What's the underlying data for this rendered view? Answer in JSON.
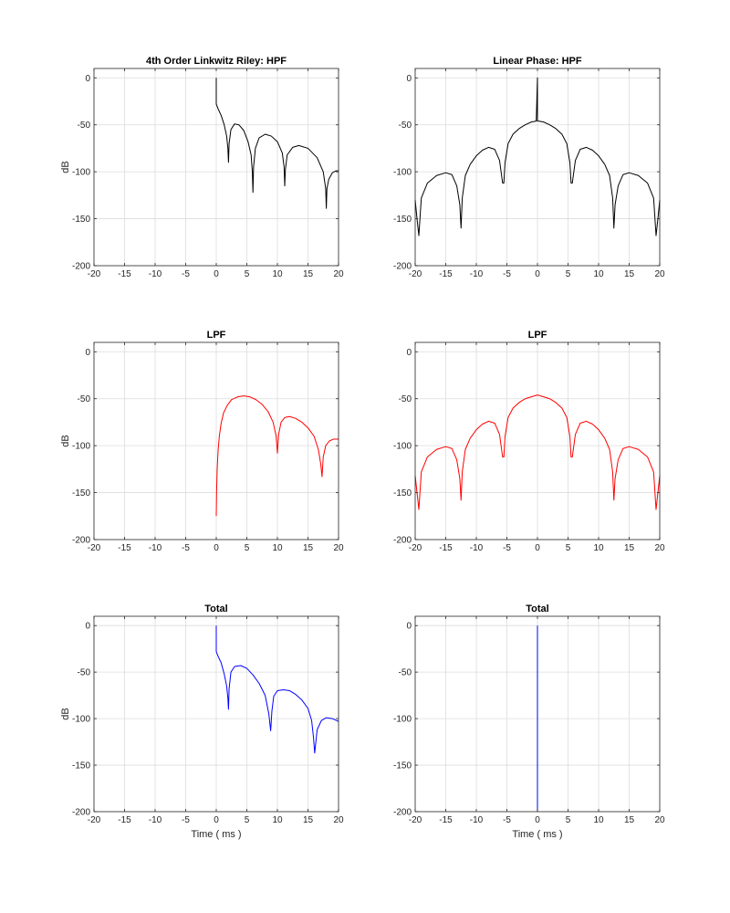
{
  "figure": {
    "background": "#ffffff",
    "axis_color": "#262626",
    "grid_color": "#dcdcdc"
  },
  "chart_data": [
    {
      "type": "line",
      "title": "4th Order Linkwitz Riley: HPF",
      "xlabel": "",
      "ylabel": "dB",
      "xlim": [
        -20,
        20
      ],
      "ylim": [
        -200,
        10
      ],
      "xticks": [
        -20,
        -15,
        -10,
        -5,
        0,
        5,
        10,
        15,
        20
      ],
      "yticks": [
        0,
        -50,
        -100,
        -150,
        -200
      ],
      "grid": true,
      "series": [
        {
          "color": "#000000",
          "x": [
            0,
            0,
            0.3,
            0.8,
            1.3,
            1.7,
            1.9,
            2.0,
            2.1,
            2.4,
            3.0,
            3.7,
            4.5,
            5.2,
            5.7,
            5.9,
            6.0,
            6.1,
            6.4,
            7.0,
            8.0,
            9.0,
            10.0,
            10.8,
            11.1,
            11.2,
            11.3,
            11.6,
            12.5,
            13.5,
            15.0,
            16.5,
            17.5,
            17.9,
            18.0,
            18.1,
            18.4,
            19.0,
            19.6,
            20.0
          ],
          "y": [
            0,
            -28,
            -33,
            -40,
            -50,
            -62,
            -75,
            -90,
            -70,
            -55,
            -49,
            -50,
            -56,
            -68,
            -82,
            -100,
            -122,
            -95,
            -75,
            -64,
            -60,
            -62,
            -68,
            -80,
            -95,
            -115,
            -98,
            -82,
            -74,
            -72,
            -75,
            -85,
            -100,
            -118,
            -139,
            -118,
            -108,
            -101,
            -99,
            -99
          ]
        }
      ]
    },
    {
      "type": "line",
      "title": "Linear Phase: HPF",
      "xlabel": "",
      "ylabel": "",
      "xlim": [
        -20,
        20
      ],
      "ylim": [
        -200,
        10
      ],
      "xticks": [
        -20,
        -15,
        -10,
        -5,
        0,
        5,
        10,
        15,
        20
      ],
      "yticks": [
        0,
        -50,
        -100,
        -150,
        -200
      ],
      "grid": true,
      "series": [
        {
          "color": "#000000",
          "x": [
            -20,
            -19.7,
            -19.4,
            -19.0,
            -18.0,
            -16.5,
            -15.0,
            -14.0,
            -13.2,
            -12.7,
            -12.5,
            -12.3,
            -11.8,
            -11.0,
            -10.0,
            -9.0,
            -8.0,
            -7.0,
            -6.2,
            -5.7,
            -5.5,
            -5.3,
            -4.8,
            -4.0,
            -3.0,
            -2.0,
            -1.0,
            -0.2,
            0,
            0,
            0,
            0.2,
            1.0,
            2.0,
            3.0,
            4.0,
            4.8,
            5.3,
            5.5,
            5.7,
            6.2,
            7.0,
            8.0,
            9.0,
            10.0,
            11.0,
            11.8,
            12.3,
            12.5,
            12.7,
            13.2,
            14.0,
            15.0,
            16.5,
            18.0,
            19.0,
            19.4,
            19.7,
            20.0
          ],
          "y": [
            -130,
            -150,
            -168,
            -128,
            -112,
            -104,
            -101,
            -103,
            -115,
            -135,
            -160,
            -128,
            -104,
            -92,
            -83,
            -77,
            -74,
            -76,
            -88,
            -112,
            -112,
            -90,
            -70,
            -60,
            -54,
            -50,
            -47,
            -46,
            0,
            0,
            -46,
            -46,
            -47,
            -50,
            -54,
            -60,
            -70,
            -90,
            -112,
            -112,
            -88,
            -76,
            -74,
            -77,
            -83,
            -92,
            -104,
            -128,
            -160,
            -135,
            -115,
            -103,
            -101,
            -104,
            -112,
            -128,
            -168,
            -150,
            -130
          ]
        }
      ]
    },
    {
      "type": "line",
      "title": "LPF",
      "xlabel": "",
      "ylabel": "dB",
      "xlim": [
        -20,
        20
      ],
      "ylim": [
        -200,
        10
      ],
      "xticks": [
        -20,
        -15,
        -10,
        -5,
        0,
        5,
        10,
        15,
        20
      ],
      "yticks": [
        0,
        -50,
        -100,
        -150,
        -200
      ],
      "grid": true,
      "series": [
        {
          "color": "#ff0000",
          "x": [
            0,
            0.05,
            0.15,
            0.3,
            0.5,
            0.8,
            1.2,
            1.8,
            2.5,
            3.5,
            4.5,
            5.5,
            6.5,
            7.5,
            8.5,
            9.3,
            9.8,
            10.0,
            10.2,
            10.6,
            11.2,
            12.0,
            13.0,
            14.0,
            15.0,
            16.0,
            16.7,
            17.1,
            17.3,
            17.5,
            17.9,
            18.5,
            19.2,
            20.0
          ],
          "y": [
            -175,
            -150,
            -125,
            -105,
            -90,
            -76,
            -65,
            -57,
            -51,
            -48,
            -47,
            -48,
            -51,
            -56,
            -64,
            -75,
            -90,
            -108,
            -88,
            -75,
            -70,
            -69,
            -71,
            -75,
            -81,
            -90,
            -104,
            -120,
            -133,
            -112,
            -100,
            -95,
            -93,
            -93
          ]
        }
      ]
    },
    {
      "type": "line",
      "title": "LPF",
      "xlabel": "",
      "ylabel": "",
      "xlim": [
        -20,
        20
      ],
      "ylim": [
        -200,
        10
      ],
      "xticks": [
        -20,
        -15,
        -10,
        -5,
        0,
        5,
        10,
        15,
        20
      ],
      "yticks": [
        0,
        -50,
        -100,
        -150,
        -200
      ],
      "grid": true,
      "series": [
        {
          "color": "#ff0000",
          "x": [
            -20,
            -19.7,
            -19.4,
            -19.0,
            -18.0,
            -16.5,
            -15.0,
            -14.0,
            -13.2,
            -12.7,
            -12.5,
            -12.3,
            -11.8,
            -11.0,
            -10.0,
            -9.0,
            -8.0,
            -7.0,
            -6.2,
            -5.7,
            -5.5,
            -5.3,
            -4.8,
            -4.0,
            -3.0,
            -2.0,
            -1.0,
            0,
            1.0,
            2.0,
            3.0,
            4.0,
            4.8,
            5.3,
            5.5,
            5.7,
            6.2,
            7.0,
            8.0,
            9.0,
            10.0,
            11.0,
            11.8,
            12.3,
            12.5,
            12.7,
            13.2,
            14.0,
            15.0,
            16.5,
            18.0,
            19.0,
            19.4,
            19.7,
            20.0
          ],
          "y": [
            -132,
            -150,
            -168,
            -128,
            -112,
            -104,
            -101,
            -103,
            -115,
            -135,
            -158,
            -128,
            -104,
            -92,
            -83,
            -77,
            -74,
            -76,
            -88,
            -112,
            -112,
            -90,
            -70,
            -60,
            -54,
            -50,
            -48,
            -46,
            -48,
            -50,
            -54,
            -60,
            -70,
            -90,
            -112,
            -112,
            -88,
            -76,
            -74,
            -77,
            -83,
            -92,
            -104,
            -128,
            -158,
            -135,
            -115,
            -103,
            -101,
            -104,
            -112,
            -128,
            -168,
            -150,
            -132
          ]
        }
      ]
    },
    {
      "type": "line",
      "title": "Total",
      "xlabel": "Time ( ms )",
      "ylabel": "dB",
      "xlim": [
        -20,
        20
      ],
      "ylim": [
        -200,
        10
      ],
      "xticks": [
        -20,
        -15,
        -10,
        -5,
        0,
        5,
        10,
        15,
        20
      ],
      "yticks": [
        0,
        -50,
        -100,
        -150,
        -200
      ],
      "grid": true,
      "series": [
        {
          "color": "#0000ff",
          "x": [
            0,
            0,
            0.3,
            0.8,
            1.3,
            1.7,
            1.9,
            2.0,
            2.1,
            2.4,
            3.0,
            4.0,
            5.0,
            6.0,
            7.0,
            8.0,
            8.6,
            8.9,
            9.1,
            9.4,
            10.0,
            11.0,
            12.0,
            13.0,
            14.0,
            15.0,
            15.6,
            15.9,
            16.1,
            16.5,
            17.2,
            18.0,
            19.0,
            20.0
          ],
          "y": [
            0,
            -28,
            -33,
            -40,
            -52,
            -65,
            -78,
            -90,
            -68,
            -50,
            -44,
            -43,
            -46,
            -53,
            -62,
            -75,
            -95,
            -113,
            -92,
            -76,
            -70,
            -69,
            -70,
            -74,
            -80,
            -89,
            -102,
            -120,
            -137,
            -112,
            -102,
            -99,
            -100,
            -103
          ]
        }
      ]
    },
    {
      "type": "line",
      "title": "Total",
      "xlabel": "Time ( ms )",
      "ylabel": "",
      "xlim": [
        -20,
        20
      ],
      "ylim": [
        -200,
        10
      ],
      "xticks": [
        -20,
        -15,
        -10,
        -5,
        0,
        5,
        10,
        15,
        20
      ],
      "yticks": [
        0,
        -50,
        -100,
        -150,
        -200
      ],
      "grid": true,
      "series": [
        {
          "color": "#0000ff",
          "x": [
            0,
            0
          ],
          "y": [
            -200,
            0
          ]
        }
      ]
    }
  ]
}
